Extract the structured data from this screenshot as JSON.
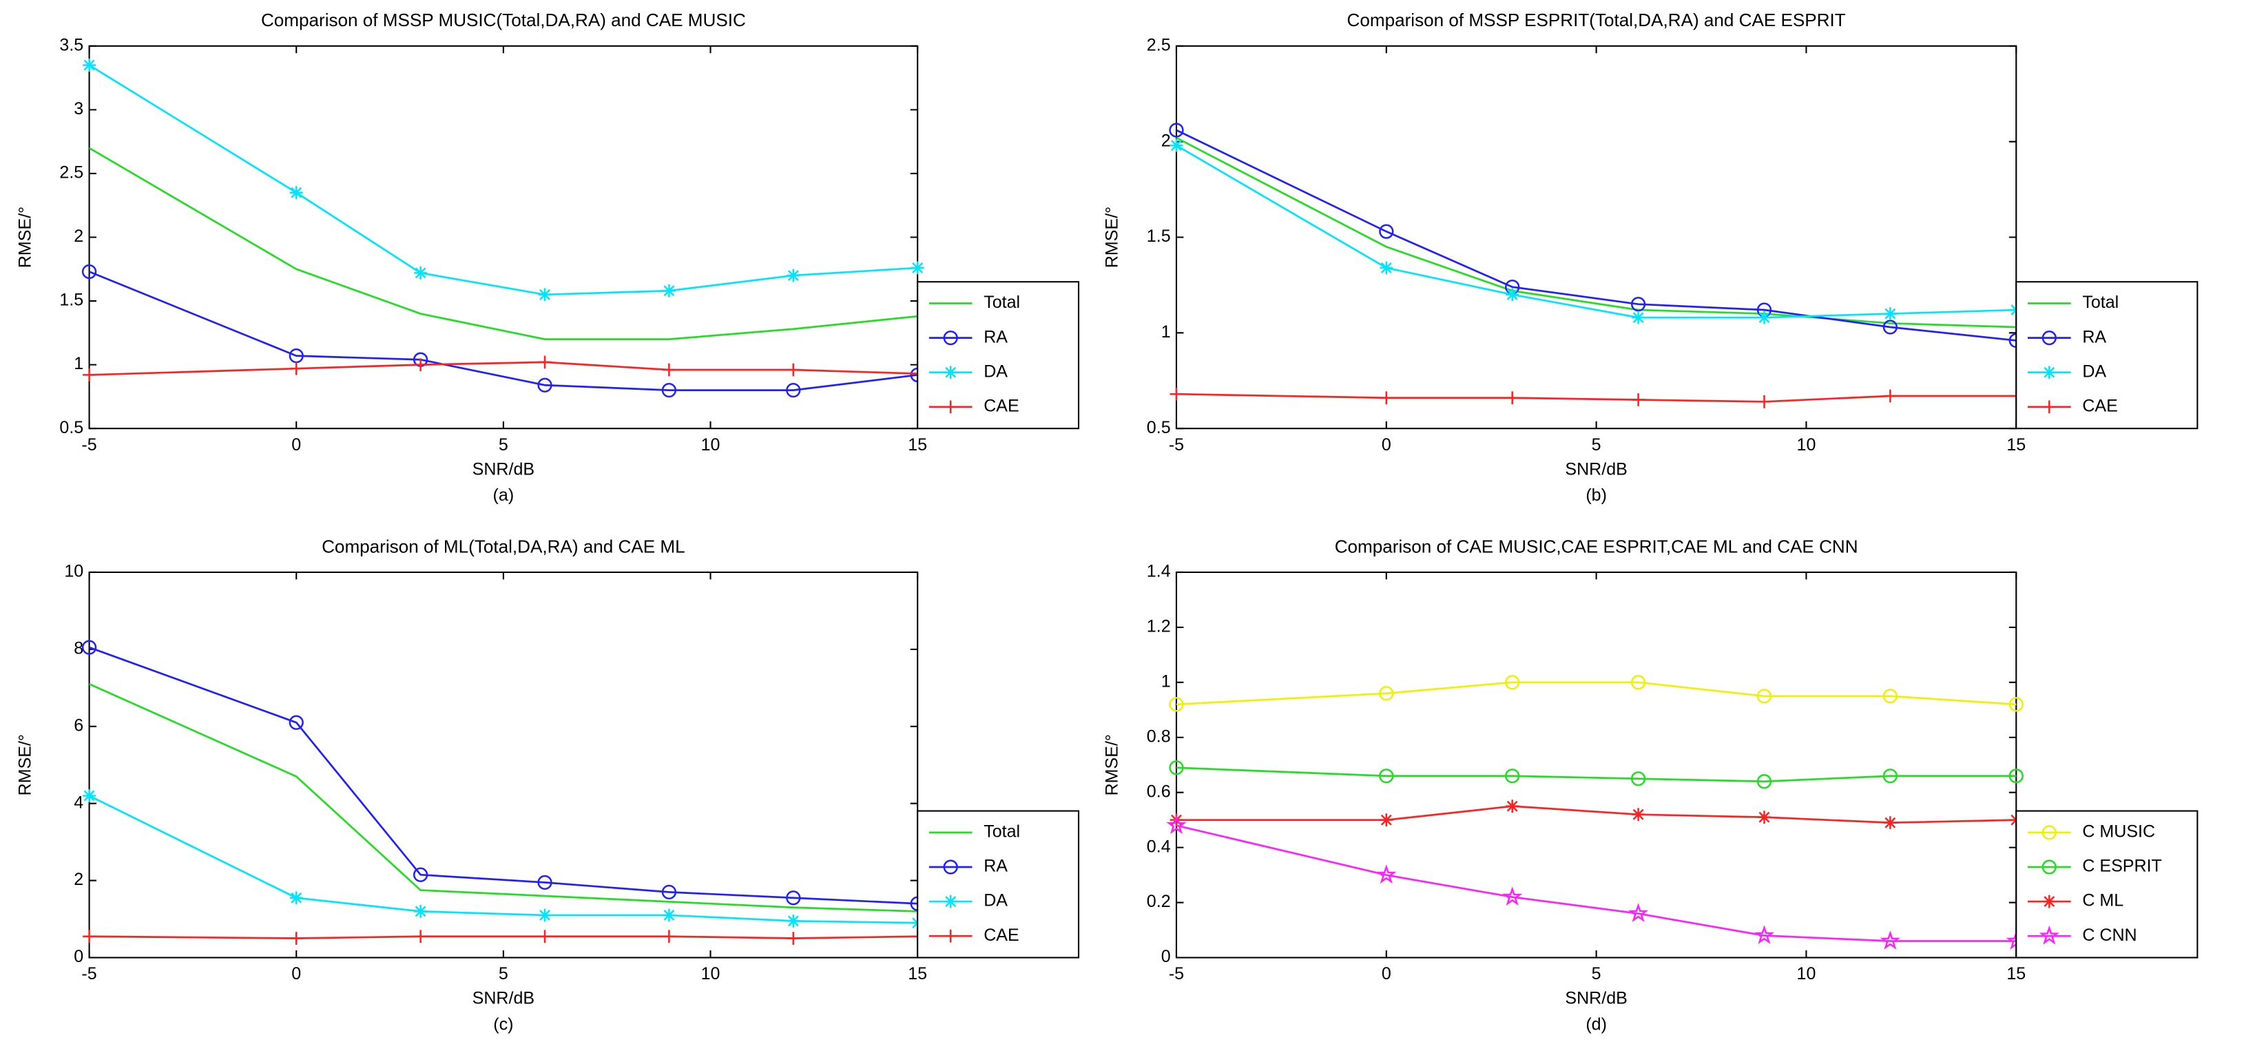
{
  "chart_data": [
    {
      "type": "line",
      "title": "Comparison of MSSP MUSIC(Total,DA,RA) and CAE MUSIC",
      "xlabel": "SNR/dB",
      "ylabel": "RMSE/°",
      "caption": "(a)",
      "x": [
        -5,
        0,
        3,
        6,
        9,
        12,
        15
      ],
      "xlim": [
        -5,
        15
      ],
      "xticks": [
        -5,
        0,
        5,
        10,
        15
      ],
      "ylim": [
        0.5,
        3.5
      ],
      "yticks": [
        0.5,
        1,
        1.5,
        2,
        2.5,
        3,
        3.5
      ],
      "series": [
        {
          "name": "Total",
          "color": "#22dd22",
          "marker": "none",
          "values": [
            2.7,
            1.75,
            1.4,
            1.2,
            1.2,
            1.28,
            1.38
          ]
        },
        {
          "name": "RA",
          "color": "#2020ff",
          "marker": "o",
          "values": [
            1.73,
            1.07,
            1.04,
            0.84,
            0.8,
            0.8,
            0.92
          ]
        },
        {
          "name": "DA",
          "color": "#00e5ff",
          "marker": "*",
          "values": [
            3.35,
            2.35,
            1.72,
            1.55,
            1.58,
            1.7,
            1.76
          ]
        },
        {
          "name": "CAE",
          "color": "#ff2020",
          "marker": "+",
          "values": [
            0.92,
            0.97,
            1.0,
            1.02,
            0.96,
            0.96,
            0.93
          ]
        }
      ]
    },
    {
      "type": "line",
      "title": "Comparison of MSSP ESPRIT(Total,DA,RA) and CAE ESPRIT",
      "xlabel": "SNR/dB",
      "ylabel": "RMSE/°",
      "caption": "(b)",
      "x": [
        -5,
        0,
        3,
        6,
        9,
        12,
        15
      ],
      "xlim": [
        -5,
        15
      ],
      "xticks": [
        -5,
        0,
        5,
        10,
        15
      ],
      "ylim": [
        0.5,
        2.5
      ],
      "yticks": [
        0.5,
        1,
        1.5,
        2,
        2.5
      ],
      "series": [
        {
          "name": "Total",
          "color": "#22dd22",
          "marker": "none",
          "values": [
            2.02,
            1.45,
            1.22,
            1.12,
            1.1,
            1.05,
            1.03
          ]
        },
        {
          "name": "RA",
          "color": "#2020ff",
          "marker": "o",
          "values": [
            2.06,
            1.53,
            1.24,
            1.15,
            1.12,
            1.03,
            0.96
          ]
        },
        {
          "name": "DA",
          "color": "#00e5ff",
          "marker": "*",
          "values": [
            1.98,
            1.34,
            1.2,
            1.08,
            1.08,
            1.1,
            1.12
          ]
        },
        {
          "name": "CAE",
          "color": "#ff2020",
          "marker": "+",
          "values": [
            0.68,
            0.66,
            0.66,
            0.65,
            0.64,
            0.67,
            0.67
          ]
        }
      ]
    },
    {
      "type": "line",
      "title": "Comparison of ML(Total,DA,RA) and CAE ML",
      "xlabel": "SNR/dB",
      "ylabel": "RMSE/°",
      "caption": "(c)",
      "x": [
        -5,
        0,
        3,
        6,
        9,
        12,
        15
      ],
      "xlim": [
        -5,
        15
      ],
      "xticks": [
        -5,
        0,
        5,
        10,
        15
      ],
      "ylim": [
        0,
        10
      ],
      "yticks": [
        0,
        2,
        4,
        6,
        8,
        10
      ],
      "series": [
        {
          "name": "Total",
          "color": "#22dd22",
          "marker": "none",
          "values": [
            7.1,
            4.7,
            1.75,
            1.6,
            1.45,
            1.3,
            1.2
          ]
        },
        {
          "name": "RA",
          "color": "#2020ff",
          "marker": "o",
          "values": [
            8.05,
            6.1,
            2.15,
            1.95,
            1.7,
            1.55,
            1.4
          ]
        },
        {
          "name": "DA",
          "color": "#00e5ff",
          "marker": "*",
          "values": [
            4.2,
            1.55,
            1.2,
            1.1,
            1.1,
            0.95,
            0.9
          ]
        },
        {
          "name": "CAE",
          "color": "#ff2020",
          "marker": "+",
          "values": [
            0.55,
            0.5,
            0.55,
            0.55,
            0.55,
            0.5,
            0.55
          ]
        }
      ]
    },
    {
      "type": "line",
      "title": "Comparison of CAE MUSIC,CAE ESPRIT,CAE ML and CAE CNN",
      "xlabel": "SNR/dB",
      "ylabel": "RMSE/°",
      "caption": "(d)",
      "x": [
        -5,
        0,
        3,
        6,
        9,
        12,
        15
      ],
      "xlim": [
        -5,
        15
      ],
      "xticks": [
        -5,
        0,
        5,
        10,
        15
      ],
      "ylim": [
        0,
        1.4
      ],
      "yticks": [
        0,
        0.2,
        0.4,
        0.6,
        0.8,
        1,
        1.2,
        1.4
      ],
      "series": [
        {
          "name": "C MUSIC",
          "color": "#f0f000",
          "marker": "o",
          "values": [
            0.92,
            0.96,
            1.0,
            1.0,
            0.95,
            0.95,
            0.92
          ]
        },
        {
          "name": "C ESPRIT",
          "color": "#22dd22",
          "marker": "o",
          "values": [
            0.69,
            0.66,
            0.66,
            0.65,
            0.64,
            0.66,
            0.66
          ]
        },
        {
          "name": "C ML",
          "color": "#ff2020",
          "marker": "*",
          "values": [
            0.5,
            0.5,
            0.55,
            0.52,
            0.51,
            0.49,
            0.5
          ]
        },
        {
          "name": "C CNN",
          "color": "#ff20ff",
          "marker": "p",
          "values": [
            0.48,
            0.3,
            0.22,
            0.16,
            0.08,
            0.06,
            0.06
          ]
        }
      ]
    }
  ]
}
